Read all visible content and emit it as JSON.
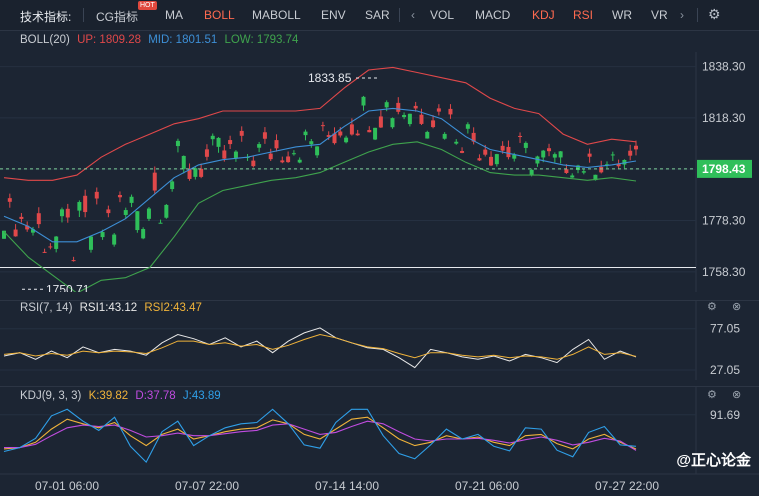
{
  "toolbar": {
    "indicator_label": "技术指标:",
    "items": [
      "CG指标",
      "MA",
      "BOLL",
      "MABOLL",
      "ENV",
      "SAR",
      "VOL",
      "MACD",
      "KDJ",
      "RSI",
      "WR",
      "VR"
    ],
    "hot_badge": "HOT",
    "active_items": [
      "BOLL",
      "KDJ",
      "RSI"
    ],
    "hot_item": "CG指标"
  },
  "boll_header": {
    "name": "BOLL(20)",
    "up": "UP: 1809.28",
    "mid": "MID: 1801.51",
    "low": "LOW: 1793.74"
  },
  "rsi_header": {
    "name": "RSI(7, 14)",
    "rsi1": "RSI1:43.12",
    "rsi2": "RSI2:43.47"
  },
  "kdj_header": {
    "name": "KDJ(9, 3, 3)",
    "k": "K:39.82",
    "d": "D:37.78",
    "j": "J:43.89"
  },
  "colors": {
    "up": "#e0484a",
    "mid": "#3d8fd6",
    "low": "#3fa34d",
    "rsi1": "#e8e8e8",
    "rsi2": "#f0b33a",
    "k": "#f0b33a",
    "d": "#c04ce0",
    "j": "#2f9fe8",
    "bull": "#2fbf5a",
    "bear": "#e0484a",
    "price_tag": "#2fbf5a"
  },
  "watermark": "@正心论金",
  "chart_data": [
    {
      "type": "candlestick",
      "title": "BOLL(20)",
      "y_ticks": [
        1838.3,
        1818.3,
        1798.3,
        1778.3,
        1758.3
      ],
      "ylim": [
        1752,
        1844
      ],
      "x_ticks": [
        "07-01 06:00",
        "07-07 22:00",
        "07-14 14:00",
        "07-21 06:00",
        "07-27 22:00"
      ],
      "current_price": "1798.43",
      "high_annotation": "1833.85",
      "low_annotation": "1750.71",
      "horizontal_line": 1760,
      "series": [
        {
          "name": "UP",
          "values": [
            1795,
            1794,
            1794,
            1796,
            1803,
            1808,
            1812,
            1816,
            1818,
            1821,
            1821,
            1821,
            1821,
            1822,
            1830,
            1837,
            1838,
            1836,
            1834,
            1832,
            1826,
            1822,
            1820,
            1812,
            1808,
            1810,
            1809
          ]
        },
        {
          "name": "MID",
          "values": [
            1780,
            1776,
            1770,
            1770,
            1774,
            1779,
            1787,
            1795,
            1800,
            1802,
            1803,
            1805,
            1807,
            1808,
            1815,
            1821,
            1822,
            1821,
            1818,
            1811,
            1806,
            1804,
            1802,
            1800,
            1799,
            1800,
            1801.5
          ]
        },
        {
          "name": "LOW",
          "values": [
            1774,
            1764,
            1757,
            1750,
            1755,
            1756,
            1760,
            1772,
            1785,
            1790,
            1792,
            1794,
            1795,
            1797,
            1801,
            1805,
            1808,
            1809,
            1806,
            1801,
            1797,
            1796,
            1796,
            1795,
            1794,
            1795,
            1793.7
          ]
        }
      ]
    },
    {
      "type": "line",
      "title": "RSI(7, 14)",
      "y_ticks": [
        77.05,
        27.05
      ],
      "ylim": [
        15,
        90
      ],
      "series": [
        {
          "name": "RSI1",
          "values": [
            44,
            48,
            40,
            50,
            42,
            55,
            48,
            52,
            50,
            45,
            60,
            70,
            65,
            58,
            66,
            55,
            62,
            48,
            62,
            72,
            78,
            66,
            60,
            54,
            52,
            42,
            30,
            52,
            48,
            43,
            40,
            44,
            38,
            46,
            42,
            36,
            52,
            64,
            40,
            50,
            43
          ]
        },
        {
          "name": "RSI2",
          "values": [
            46,
            48,
            44,
            47,
            45,
            50,
            48,
            50,
            49,
            47,
            54,
            62,
            62,
            58,
            60,
            56,
            58,
            52,
            57,
            64,
            70,
            66,
            60,
            55,
            53,
            47,
            42,
            48,
            48,
            45,
            43,
            45,
            42,
            44,
            43,
            40,
            46,
            55,
            46,
            48,
            43.5
          ]
        }
      ]
    },
    {
      "type": "line",
      "title": "KDJ(9, 3, 3)",
      "y_ticks": [
        91.69
      ],
      "ylim": [
        5,
        105
      ],
      "series": [
        {
          "name": "K",
          "values": [
            40,
            42,
            50,
            70,
            85,
            78,
            72,
            80,
            60,
            45,
            62,
            70,
            55,
            60,
            66,
            70,
            72,
            84,
            78,
            62,
            55,
            70,
            85,
            88,
            72,
            55,
            45,
            50,
            60,
            55,
            58,
            50,
            45,
            60,
            62,
            48,
            40,
            55,
            62,
            50,
            39.8
          ]
        },
        {
          "name": "D",
          "values": [
            42,
            42,
            47,
            60,
            72,
            76,
            74,
            76,
            68,
            58,
            60,
            64,
            60,
            60,
            63,
            66,
            68,
            76,
            78,
            70,
            62,
            65,
            74,
            82,
            78,
            66,
            55,
            52,
            55,
            55,
            56,
            53,
            49,
            54,
            58,
            53,
            46,
            50,
            56,
            52,
            37.8
          ]
        },
        {
          "name": "J",
          "values": [
            36,
            42,
            56,
            90,
            100,
            82,
            68,
            88,
            44,
            20,
            66,
            82,
            45,
            60,
            72,
            78,
            80,
            100,
            78,
            46,
            41,
            80,
            100,
            100,
            60,
            33,
            25,
            46,
            70,
            55,
            62,
            44,
            37,
            72,
            70,
            38,
            28,
            65,
            74,
            46,
            43.9
          ]
        }
      ]
    }
  ]
}
